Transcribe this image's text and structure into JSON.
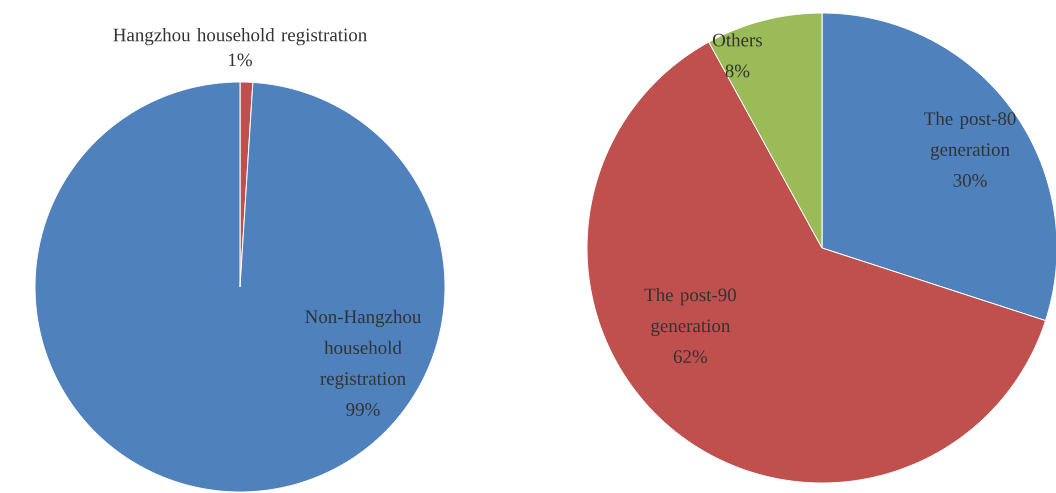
{
  "chart_data": [
    {
      "type": "pie",
      "categories": [
        "Hangzhou household registration",
        "Non-Hangzhou household registration"
      ],
      "values": [
        1,
        99
      ],
      "value_labels": [
        "1%",
        "99%"
      ],
      "colors": [
        "#c0504d",
        "#4f81bd"
      ]
    },
    {
      "type": "pie",
      "categories": [
        "The post-80 generation",
        "The post-90 generation",
        "Others"
      ],
      "values": [
        30,
        62,
        8
      ],
      "value_labels": [
        "30%",
        "62%",
        "8%"
      ],
      "colors": [
        "#4f81bd",
        "#c0504d",
        "#9bbb59"
      ]
    }
  ]
}
